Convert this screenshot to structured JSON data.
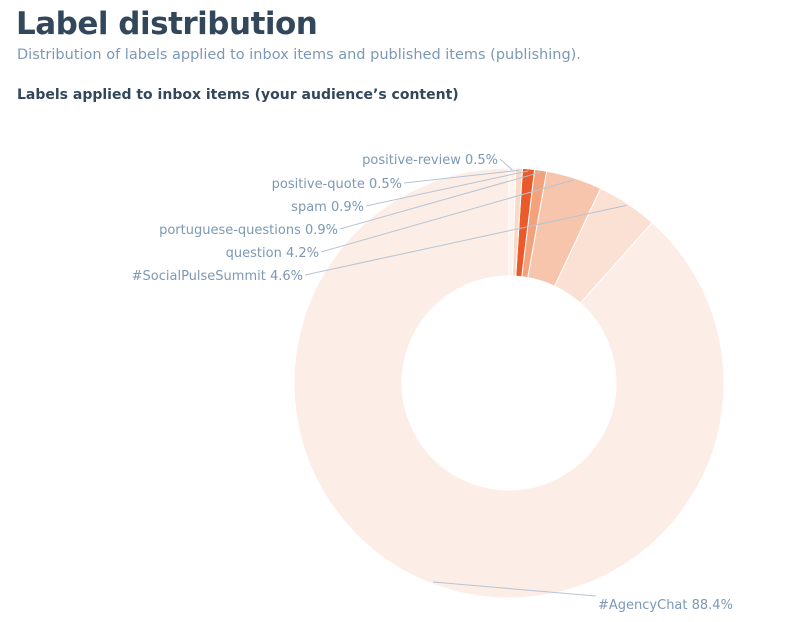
{
  "header": {
    "title": "Label distribution",
    "subtitle": "Distribution of labels applied to inbox items and published items (publishing)."
  },
  "section": {
    "title": "Labels applied to inbox items (your audience’s content)"
  },
  "chart_data": {
    "type": "pie",
    "donut": true,
    "title": "Labels applied to inbox items (your audience’s content)",
    "slices": [
      {
        "label": "#AgencyChat",
        "value": 88.4,
        "display": "88.4%",
        "color": "#fcede6"
      },
      {
        "label": "#SocialPulseSummit",
        "value": 4.6,
        "display": "4.6%",
        "color": "#fbe1d4"
      },
      {
        "label": "question",
        "value": 4.2,
        "display": "4.2%",
        "color": "#f6c5ac"
      },
      {
        "label": "portuguese-questions",
        "value": 0.9,
        "display": "0.9%",
        "color": "#f4a27c"
      },
      {
        "label": "spam",
        "value": 0.9,
        "display": "0.9%",
        "color": "#ea5a2a"
      },
      {
        "label": "positive-quote",
        "value": 0.5,
        "display": "0.5%",
        "color": "#fbd9c8"
      },
      {
        "label": "positive-review",
        "value": 0.5,
        "display": "0.5%",
        "color": "#fdf2ec"
      }
    ],
    "start_angle_deg": 0,
    "direction": "counterclockwise",
    "legend": "none",
    "labels": "outside with leader lines"
  }
}
